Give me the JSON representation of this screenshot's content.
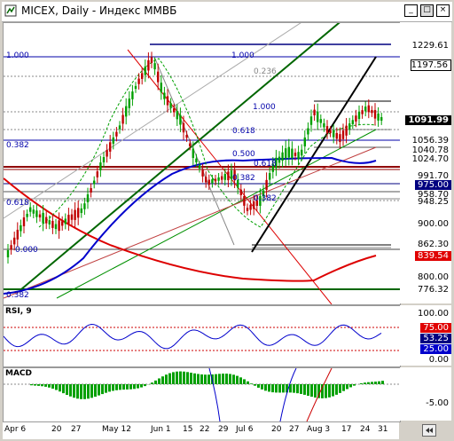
{
  "window": {
    "title": "MICEX, Daily - Индекс ММВБ",
    "buttons": [
      "_",
      "□",
      "×"
    ]
  },
  "price_axis": {
    "labels": [
      {
        "value": "1229.61"
      },
      {
        "value": "1197.56",
        "box": "#ffffff"
      },
      {
        "value": "1091.99",
        "box": "#000000"
      },
      {
        "value": "1056.39"
      },
      {
        "value": "1040.78"
      },
      {
        "value": "1024.70"
      },
      {
        "value": "991.70"
      },
      {
        "value": "975.00",
        "box": "#000080"
      },
      {
        "value": "958.70"
      },
      {
        "value": "948.25"
      },
      {
        "value": "900.00"
      },
      {
        "value": "862.30"
      },
      {
        "value": "839.54",
        "box": "#e00000"
      },
      {
        "value": "800.00"
      },
      {
        "value": "776.32"
      }
    ]
  },
  "fib_labels": [
    "1.000",
    "1.000",
    "0.236",
    "1.000",
    "0.618",
    "0.382",
    "0.500",
    "0.618",
    "0.382",
    "0.618",
    "0.382",
    "0.000",
    "0.382"
  ],
  "rsi": {
    "title": "RSI, 9",
    "axis": [
      {
        "value": "100.00"
      },
      {
        "value": "75.00",
        "box": "#e00000"
      },
      {
        "value": "53.25",
        "box": "#000080"
      },
      {
        "value": "25.00",
        "box": "#0000cc"
      },
      {
        "value": "0.00"
      }
    ]
  },
  "macd": {
    "title": "MACD",
    "axis": [
      {
        "value": "-5.00"
      }
    ]
  },
  "date_axis": [
    "Apr 6",
    "20",
    "27",
    "May 12",
    "Jun 1",
    "15",
    "22",
    "29",
    "Jul 6",
    "20",
    "27",
    "Aug 3",
    "17",
    "24",
    "31"
  ],
  "colors": {
    "bg": "#ffffff",
    "frame": "#d4d0c8",
    "up": "#00a000",
    "down": "#c00000",
    "ma_blue": "#0000cc",
    "ma_red": "#dd0000",
    "trend_green": "#006600"
  }
}
